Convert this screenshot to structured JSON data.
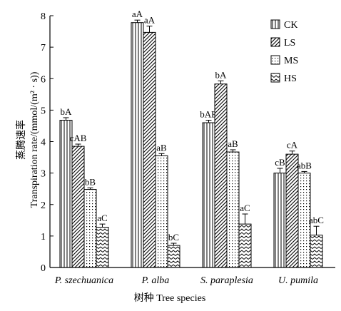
{
  "chart_data": {
    "type": "bar",
    "title": "",
    "xlabel": "树种 Tree species",
    "ylabel_cn": "蒸腾速率",
    "ylabel_en": "Transpiration rate/(mmol/(m² · s))",
    "ylim": [
      0,
      8
    ],
    "yticks": [
      "0",
      "1",
      "2",
      "3",
      "4",
      "5",
      "6",
      "7",
      "8"
    ],
    "categories": [
      "P. szechuanica",
      "P. alba",
      "S. paraplesia",
      "U. pumila"
    ],
    "legend_position": "top-right",
    "grid": false,
    "series": [
      {
        "name": "CK",
        "pattern": "vertical-lines",
        "values": [
          4.68,
          7.78,
          4.6,
          3.0
        ],
        "errors": [
          0.08,
          0.08,
          0.08,
          0.15
        ],
        "labels": [
          "bA",
          "aA",
          "bAB",
          "cB"
        ]
      },
      {
        "name": "LS",
        "pattern": "diagonal-lines",
        "values": [
          3.85,
          7.47,
          5.83,
          3.6
        ],
        "errors": [
          0.07,
          0.2,
          0.1,
          0.1
        ],
        "labels": [
          "cAB",
          "aA",
          "bA",
          "cA"
        ]
      },
      {
        "name": "MS",
        "pattern": "dots",
        "values": [
          2.48,
          3.55,
          3.67,
          3.0
        ],
        "errors": [
          0.05,
          0.07,
          0.07,
          0.05
        ],
        "labels": [
          "bB",
          "aB",
          "aB",
          "abB"
        ]
      },
      {
        "name": "HS",
        "pattern": "zigzag",
        "values": [
          1.28,
          0.7,
          1.38,
          1.03
        ],
        "errors": [
          0.1,
          0.07,
          0.32,
          0.28
        ],
        "labels": [
          "aC",
          "bC",
          "aC",
          "abC"
        ]
      }
    ]
  }
}
